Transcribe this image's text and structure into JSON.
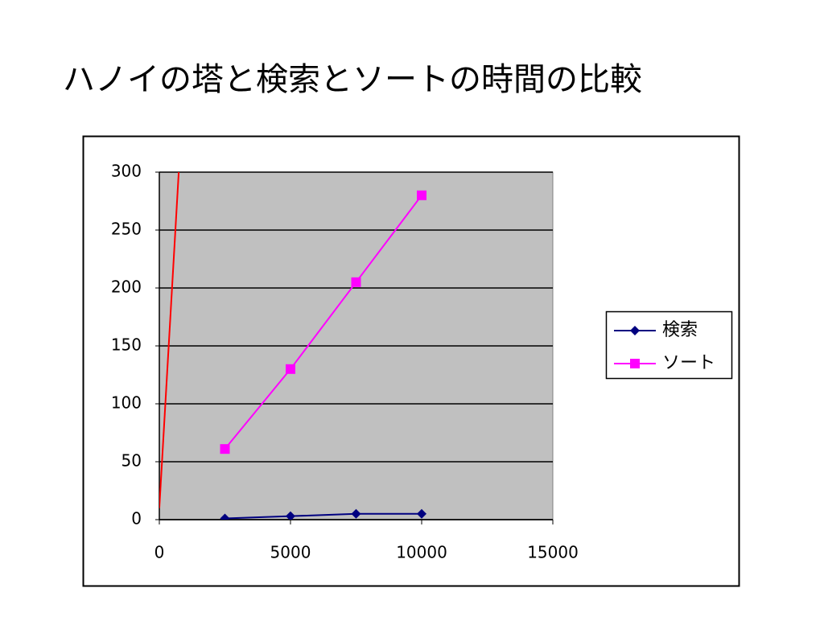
{
  "chart_data": {
    "type": "line",
    "title": "ハノイの塔と検索とソートの時間の比較",
    "series": [
      {
        "name": "検索",
        "color": "#000080",
        "marker": "diamond",
        "x": [
          2500,
          5000,
          7500,
          10000
        ],
        "values": [
          1,
          3,
          5,
          5
        ]
      },
      {
        "name": "ソート",
        "color": "#ff00ff",
        "marker": "square",
        "x": [
          2500,
          5000,
          7500,
          10000
        ],
        "values": [
          61,
          130,
          205,
          280
        ]
      },
      {
        "color": "#ff0000",
        "x": [
          0,
          740
        ],
        "values": [
          10,
          300
        ]
      }
    ],
    "xlim": [
      0,
      15000
    ],
    "xticks": [
      0,
      5000,
      10000,
      15000
    ],
    "ylim": [
      0,
      300
    ],
    "yticks": [
      0,
      50,
      100,
      150,
      200,
      250,
      300
    ],
    "grid": true,
    "plot_background": "#c0c0c0",
    "legend": "right"
  }
}
